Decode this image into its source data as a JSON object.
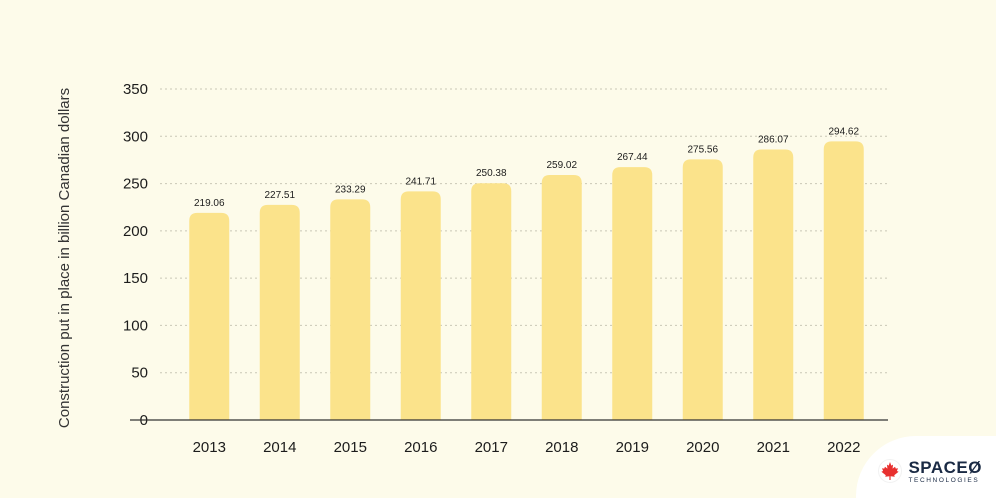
{
  "chart_data": {
    "type": "bar",
    "categories": [
      "2013",
      "2014",
      "2015",
      "2016",
      "2017",
      "2018",
      "2019",
      "2020",
      "2021",
      "2022"
    ],
    "values": [
      219.06,
      227.51,
      233.29,
      241.71,
      250.38,
      259.02,
      267.44,
      275.56,
      286.07,
      294.62
    ],
    "data_labels": [
      "219.06",
      "227.51",
      "233.29",
      "241.71",
      "250.38",
      "259.02",
      "267.44",
      "275.56",
      "286.07",
      "294.62"
    ],
    "ylabel": "Construction put in place in billion Canadian dollars",
    "xlabel": "",
    "ylim": [
      0,
      350
    ],
    "yticks": [
      0,
      50,
      100,
      150,
      200,
      250,
      300,
      350
    ],
    "grid": true,
    "bar_color": "#fbe38b"
  },
  "logo": {
    "brand": "SPACEØ",
    "subtitle": "TECHNOLOGIES",
    "icon": "maple-leaf-icon",
    "icon_color": "#e8302f"
  }
}
